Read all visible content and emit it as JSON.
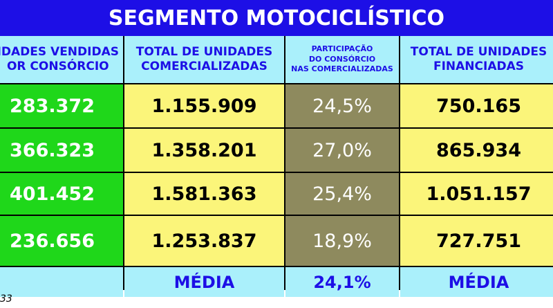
{
  "title": "SEGMENTO MOTOCICLÍSTICO",
  "headers": {
    "col1_line1": "IDADES VENDIDAS",
    "col1_line2": "OR CONSÓRCIO",
    "col2_line1": "TOTAL DE UNIDADES",
    "col2_line2": "COMERCIALIZADAS",
    "col3_line1": "PARTICIPAÇÃO",
    "col3_line2": "DO CONSÓRCIO",
    "col3_line3": "NAS COMERCIALIZADAS",
    "col4_line1": "TOTAL DE UNIDADES",
    "col4_line2": "FINANCIADAS"
  },
  "rows": [
    {
      "consorcio": "283.372",
      "comercializadas": "1.155.909",
      "participacao": "24,5%",
      "financiadas": "750.165"
    },
    {
      "consorcio": "366.323",
      "comercializadas": "1.358.201",
      "participacao": "27,0%",
      "financiadas": "865.934"
    },
    {
      "consorcio": "401.452",
      "comercializadas": "1.581.363",
      "participacao": "25,4%",
      "financiadas": "1.051.157"
    },
    {
      "consorcio": "236.656",
      "comercializadas": "1.253.837",
      "participacao": "18,9%",
      "financiadas": "727.751"
    }
  ],
  "footer": {
    "media_label_1": "MÉDIA",
    "media_value": "24,1%",
    "media_label_2": "MÉDIA"
  },
  "footnote": "33",
  "colors": {
    "title_bg": "#1d0fe6",
    "header_bg": "#aaf0fb",
    "green": "#1fd71a",
    "yellow": "#fbf57a",
    "olive": "#8e8a5e"
  }
}
